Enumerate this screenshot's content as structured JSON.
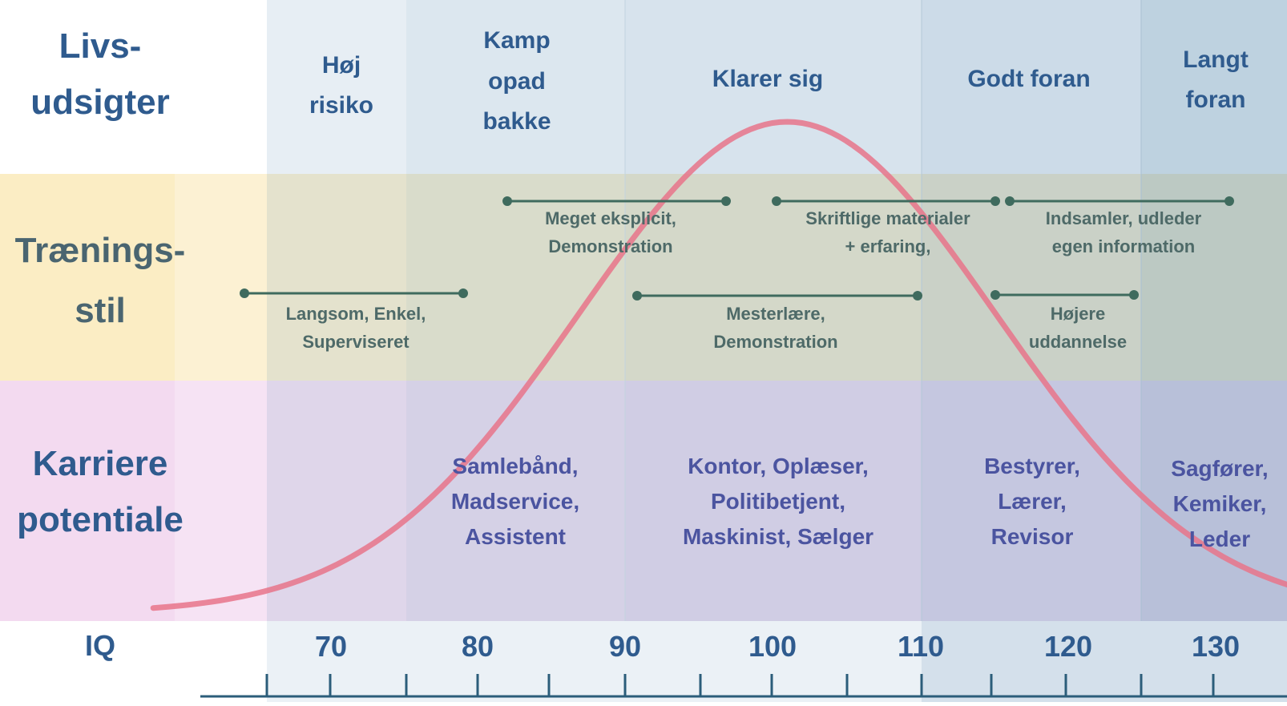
{
  "colors": {
    "band_outlook": "#dbe4ec",
    "band_training": "#e7dfae",
    "band_career": "#d9c8e2",
    "curve": "#e8748a",
    "axis": "#2b5d7a",
    "training_bar": "#3f6b5e"
  },
  "row_labels": {
    "outlook": [
      "Livs-",
      "udsigter"
    ],
    "training": [
      "Trænings-",
      "stil"
    ],
    "career": [
      "Karriere",
      "potentiale"
    ],
    "iq": "IQ"
  },
  "outlooks": [
    {
      "lines": [
        "Høj",
        "risiko"
      ]
    },
    {
      "lines": [
        "Kamp",
        "opad",
        "bakke"
      ]
    },
    {
      "lines": [
        "Klarer sig"
      ]
    },
    {
      "lines": [
        "Godt foran"
      ]
    },
    {
      "lines": [
        "Langt",
        "foran"
      ]
    }
  ],
  "training_styles": [
    {
      "from_iq": 65.5,
      "to_iq": 80.5,
      "lines": [
        "Langsom, Enkel,",
        "Superviseret"
      ]
    },
    {
      "from_iq": 82,
      "to_iq": 97,
      "lines": [
        "Meget eksplicit,",
        "Demonstration"
      ]
    },
    {
      "from_iq": 90.8,
      "to_iq": 110.5,
      "lines": [
        "Mesterlære,",
        "Demonstration"
      ]
    },
    {
      "from_iq": 100.5,
      "to_iq": 115.5,
      "lines": [
        "Skriftlige materialer",
        "+ erfaring,"
      ]
    },
    {
      "from_iq": 116.5,
      "to_iq": 131.5,
      "lines": [
        "Indsamler, udleder",
        "egen information"
      ]
    },
    {
      "from_iq": 115.5,
      "to_iq": 125,
      "lines": [
        "Højere",
        "uddannelse"
      ]
    }
  ],
  "careers": [
    {
      "lines": [
        "Samlebånd,",
        "Madservice,",
        "Assistent"
      ]
    },
    {
      "lines": [
        "Kontor, Oplæser,",
        "Politibetjent,",
        "Maskinist, Sælger"
      ]
    },
    {
      "lines": [
        "Bestyrer,",
        "Lærer,",
        "Revisor"
      ]
    },
    {
      "lines": [
        "Sagfører,",
        "Kemiker,",
        "Leder"
      ]
    }
  ],
  "iq_ticks": [
    "70",
    "80",
    "90",
    "100",
    "110",
    "120",
    "130"
  ]
}
